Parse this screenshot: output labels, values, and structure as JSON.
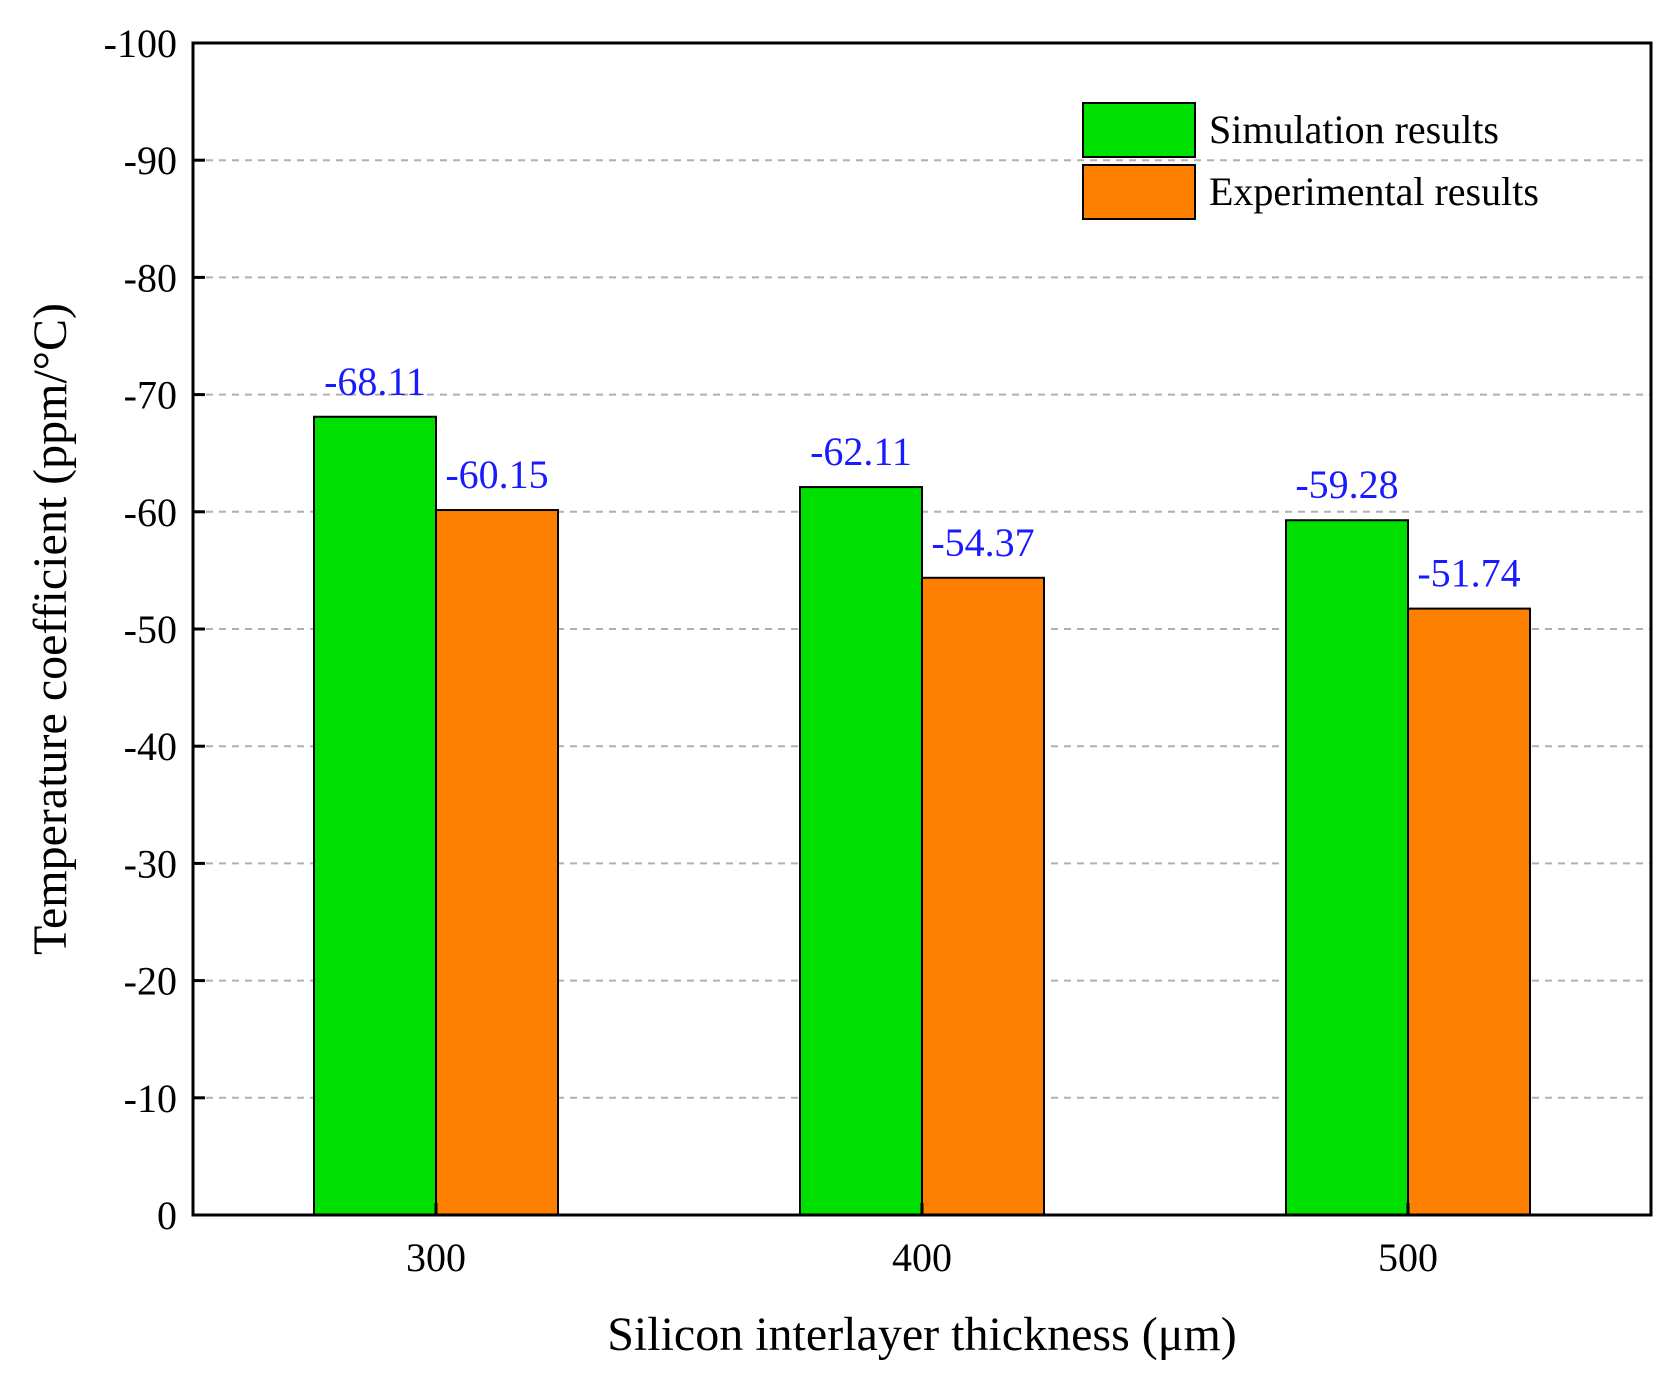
{
  "chart_data": {
    "type": "bar",
    "title": "",
    "xlabel": "Silicon interlayer thickness (μm)",
    "ylabel": "Temperature coefficient (ppm/°C)",
    "categories": [
      "300",
      "400",
      "500"
    ],
    "series": [
      {
        "name": "Simulation results",
        "color": "#00e000",
        "values": [
          -68.11,
          -62.11,
          -59.28
        ],
        "labels": [
          "-68.11",
          "-62.11",
          "-59.28"
        ]
      },
      {
        "name": "Experimental results",
        "color": "#ff8000",
        "values": [
          -60.15,
          -54.37,
          -51.74
        ],
        "labels": [
          "-60.15",
          "-54.37",
          "-51.74"
        ]
      }
    ],
    "ylim": [
      0,
      -100
    ],
    "yticks": [
      0,
      -10,
      -20,
      -30,
      -40,
      -50,
      -60,
      -70,
      -80,
      -90,
      -100
    ],
    "ytick_labels": [
      "0",
      "-10",
      "-20",
      "-30",
      "-40",
      "-50",
      "-60",
      "-70",
      "-80",
      "-90",
      "-100"
    ],
    "grid": "horizontal dashed",
    "legend_position": "top-right",
    "data_label_color": "#1a1aff"
  }
}
